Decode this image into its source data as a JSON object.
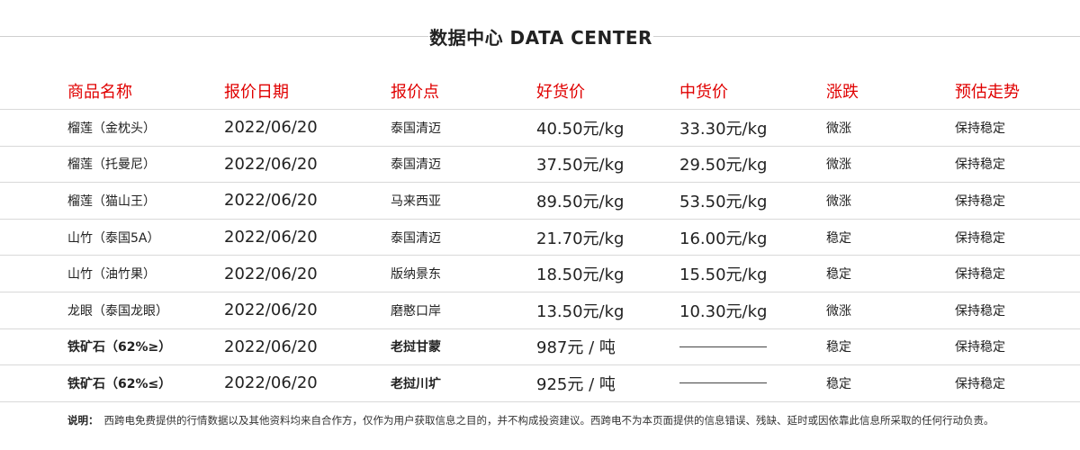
{
  "title": "数据中心 DATA CENTER",
  "columns": [
    "商品名称",
    "报价日期",
    "报价点",
    "好货价",
    "中货价",
    "涨跌",
    "预估走势"
  ],
  "rows": [
    {
      "name": "榴莲（金枕头）",
      "date": "2022/06/20",
      "point": "泰国清迈",
      "good": "40.50元/kg",
      "mid": "33.30元/kg",
      "change": "微涨",
      "trend": "保持稳定"
    },
    {
      "name": "榴莲（托曼尼）",
      "date": "2022/06/20",
      "point": "泰国清迈",
      "good": "37.50元/kg",
      "mid": "29.50元/kg",
      "change": "微涨",
      "trend": "保持稳定"
    },
    {
      "name": "榴莲（猫山王）",
      "date": "2022/06/20",
      "point": "马来西亚",
      "good": "89.50元/kg",
      "mid": "53.50元/kg",
      "change": "微涨",
      "trend": "保持稳定"
    },
    {
      "name": "山竹（泰国5A）",
      "date": "2022/06/20",
      "point": "泰国清迈",
      "good": "21.70元/kg",
      "mid": "16.00元/kg",
      "change": "稳定",
      "trend": "保持稳定"
    },
    {
      "name": "山竹（油竹果）",
      "date": "2022/06/20",
      "point": "版纳景东",
      "good": "18.50元/kg",
      "mid": "15.50元/kg",
      "change": "稳定",
      "trend": "保持稳定"
    },
    {
      "name": "龙眼（泰国龙眼）",
      "date": "2022/06/20",
      "point": "磨憨口岸",
      "good": "13.50元/kg",
      "mid": "10.30元/kg",
      "change": "微涨",
      "trend": "保持稳定"
    },
    {
      "name": "铁矿石（62%≥）",
      "date": "2022/06/20",
      "point": "老挝甘蒙",
      "good": "987元 / 吨",
      "mid": "",
      "change": "稳定",
      "trend": "保持稳定"
    },
    {
      "name": "铁矿石（62%≤）",
      "date": "2022/06/20",
      "point": "老挝川圹",
      "good": "925元 / 吨",
      "mid": "",
      "change": "稳定",
      "trend": "保持稳定"
    }
  ],
  "note": {
    "label": "说明：",
    "text": "西跨电免费提供的行情数据以及其他资料均来自合作方，仅作为用户获取信息之目的，并不构成投资建议。西跨电不为本页面提供的信息错误、残缺、延时或因依靠此信息所采取的任何行动负责。"
  },
  "colors": {
    "header_text": "#e00000",
    "divider": "#d9d9d9"
  }
}
